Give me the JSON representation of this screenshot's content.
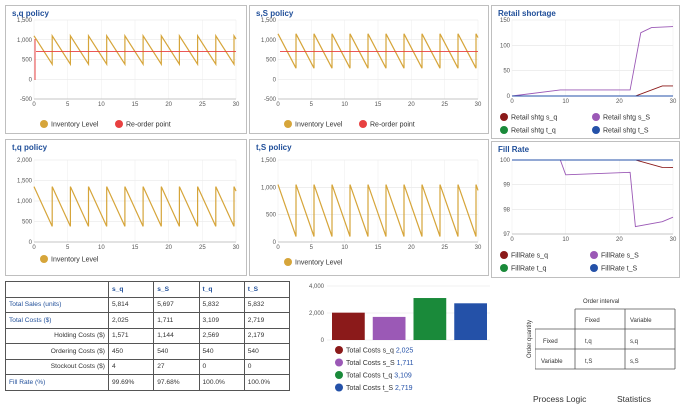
{
  "colors": {
    "inventory": "#d6a53a",
    "reorder": "#e84040",
    "sq": "#8b1a1a",
    "sS": "#9b59b6",
    "tq": "#1a8a3a",
    "tS": "#2451a8",
    "title": "#1f4e99"
  },
  "charts": {
    "sq": {
      "title": "s,q policy",
      "y_ticks": [
        "1,500",
        "1,000",
        "500",
        "0",
        "-500"
      ],
      "x_ticks": [
        "0",
        "5",
        "10",
        "15",
        "20",
        "25",
        "30"
      ],
      "legend": [
        "Inventory Level",
        "Re-order point"
      ]
    },
    "sS": {
      "title": "s,S policy",
      "y_ticks": [
        "1,500",
        "1,000",
        "500",
        "0",
        "-500"
      ],
      "x_ticks": [
        "0",
        "5",
        "10",
        "15",
        "20",
        "25",
        "30"
      ],
      "legend": [
        "Inventory Level",
        "Re-order point"
      ]
    },
    "shortage": {
      "title": "Retail shortage",
      "y_ticks": [
        "150",
        "100",
        "50",
        "0"
      ],
      "x_ticks": [
        "0",
        "10",
        "20",
        "30"
      ],
      "legend": [
        "Retail shtg s_q",
        "Retail shtg s_S",
        "Retail shtg t_q",
        "Retail shtg t_S"
      ]
    },
    "tq": {
      "title": "t,q policy",
      "y_ticks": [
        "2,000",
        "1,500",
        "1,000",
        "500",
        "0"
      ],
      "x_ticks": [
        "0",
        "5",
        "10",
        "15",
        "20",
        "25",
        "30"
      ],
      "legend": [
        "Inventory Level"
      ]
    },
    "tS": {
      "title": "t,S policy",
      "y_ticks": [
        "1,500",
        "1,000",
        "500",
        "0"
      ],
      "x_ticks": [
        "0",
        "5",
        "10",
        "15",
        "20",
        "25",
        "30"
      ],
      "legend": [
        "Inventory Level"
      ]
    },
    "fill": {
      "title": "Fill Rate",
      "y_ticks": [
        "100",
        "99",
        "98",
        "97"
      ],
      "x_ticks": [
        "0",
        "10",
        "20",
        "30"
      ],
      "legend": [
        "FillRate s_q",
        "FillRate s_S",
        "FillRate t_q",
        "FillRate t_S"
      ]
    },
    "costs": {
      "y_ticks": [
        "4,000",
        "2,000",
        "0"
      ],
      "legend": [
        {
          "label": "Total Costs s_q",
          "value": "2,025"
        },
        {
          "label": "Total Costs s_S",
          "value": "1,711"
        },
        {
          "label": "Total Costs t_q",
          "value": "3,109"
        },
        {
          "label": "Total Costs t_S",
          "value": "2,719"
        }
      ]
    }
  },
  "chart_data": [
    {
      "type": "line",
      "title": "s,q policy",
      "x_range": [
        0,
        30
      ],
      "y_range": [
        -500,
        1500
      ],
      "series": [
        {
          "name": "Inventory Level",
          "pattern": "sawtooth",
          "period": 2.7,
          "max": 1100,
          "min": 380
        },
        {
          "name": "Re-order point",
          "constant": 700
        }
      ]
    },
    {
      "type": "line",
      "title": "s,S policy",
      "x_range": [
        0,
        30
      ],
      "y_range": [
        -500,
        1500
      ],
      "series": [
        {
          "name": "Inventory Level",
          "pattern": "sawtooth",
          "period": 2.7,
          "max": 1150,
          "min": 280
        },
        {
          "name": "Re-order point",
          "constant": 700
        }
      ]
    },
    {
      "type": "line",
      "title": "Retail shortage",
      "x_range": [
        0,
        30
      ],
      "y_range": [
        0,
        150
      ],
      "series": [
        {
          "name": "Retail shtg s_q",
          "x": [
            0,
            23,
            28,
            30
          ],
          "y": [
            0,
            0,
            20,
            20
          ]
        },
        {
          "name": "Retail shtg s_S",
          "x": [
            0,
            9,
            22,
            24,
            26,
            30
          ],
          "y": [
            0,
            12,
            12,
            125,
            135,
            137
          ]
        },
        {
          "name": "Retail shtg t_q",
          "x": [
            0,
            30
          ],
          "y": [
            0,
            0
          ]
        },
        {
          "name": "Retail shtg t_S",
          "x": [
            0,
            30
          ],
          "y": [
            0,
            0
          ]
        }
      ]
    },
    {
      "type": "line",
      "title": "t,q policy",
      "x_range": [
        0,
        30
      ],
      "y_range": [
        0,
        2000
      ],
      "series": [
        {
          "name": "Inventory Level",
          "pattern": "sawtooth",
          "period": 2.7,
          "max": 1350,
          "min": 380
        }
      ]
    },
    {
      "type": "line",
      "title": "t,S policy",
      "x_range": [
        0,
        30
      ],
      "y_range": [
        0,
        1500
      ],
      "series": [
        {
          "name": "Inventory Level",
          "pattern": "sawtooth",
          "period": 2.7,
          "max": 1050,
          "min": 100
        }
      ]
    },
    {
      "type": "line",
      "title": "Fill Rate",
      "x_range": [
        0,
        30
      ],
      "y_range": [
        97,
        100
      ],
      "series": [
        {
          "name": "FillRate s_q",
          "x": [
            0,
            23,
            28,
            30
          ],
          "y": [
            100,
            100,
            99.7,
            99.69
          ]
        },
        {
          "name": "FillRate s_S",
          "x": [
            0,
            9,
            10,
            22,
            23,
            28,
            30
          ],
          "y": [
            100,
            100,
            99.4,
            99.5,
            97.3,
            97.5,
            97.68
          ]
        },
        {
          "name": "FillRate t_q",
          "x": [
            0,
            30
          ],
          "y": [
            100,
            100
          ]
        },
        {
          "name": "FillRate t_S",
          "x": [
            0,
            30
          ],
          "y": [
            100,
            100
          ]
        }
      ]
    },
    {
      "type": "bar",
      "categories": [
        "Total Costs s_q",
        "Total Costs s_S",
        "Total Costs t_q",
        "Total Costs t_S"
      ],
      "values": [
        2025,
        1711,
        3109,
        2719
      ],
      "y_range": [
        0,
        4000
      ]
    }
  ],
  "table": {
    "headers": [
      "",
      "s_q",
      "s_S",
      "t_q",
      "t_S"
    ],
    "rows": [
      {
        "label": "Total Sales (units)",
        "sub": false,
        "values": [
          "5,814",
          "5,697",
          "5,832",
          "5,832"
        ]
      },
      {
        "label": "Total Costs ($)",
        "sub": false,
        "values": [
          "2,025",
          "1,711",
          "3,109",
          "2,719"
        ]
      },
      {
        "label": "Holding Costs ($)",
        "sub": true,
        "values": [
          "1,571",
          "1,144",
          "2,569",
          "2,179"
        ]
      },
      {
        "label": "Ordering Costs ($)",
        "sub": true,
        "values": [
          "450",
          "540",
          "540",
          "540"
        ]
      },
      {
        "label": "Stockout Costs ($)",
        "sub": true,
        "values": [
          "4",
          "27",
          "0",
          "0"
        ]
      },
      {
        "label": "Fill Rate (%)",
        "sub": false,
        "values": [
          "99.69%",
          "97.68%",
          "100.0%",
          "100.0%"
        ]
      }
    ]
  },
  "matrix": {
    "title": "Order interval",
    "col_headers": [
      "Fixed",
      "Variable"
    ],
    "row_axis_label": "Order quantity",
    "rows": [
      {
        "label": "Fixed",
        "cells": [
          "t,q",
          "s,q"
        ]
      },
      {
        "label": "Variable",
        "cells": [
          "t,S",
          "s,S"
        ]
      }
    ]
  },
  "buttons": {
    "process_logic": "Process Logic",
    "statistics": "Statistics"
  }
}
